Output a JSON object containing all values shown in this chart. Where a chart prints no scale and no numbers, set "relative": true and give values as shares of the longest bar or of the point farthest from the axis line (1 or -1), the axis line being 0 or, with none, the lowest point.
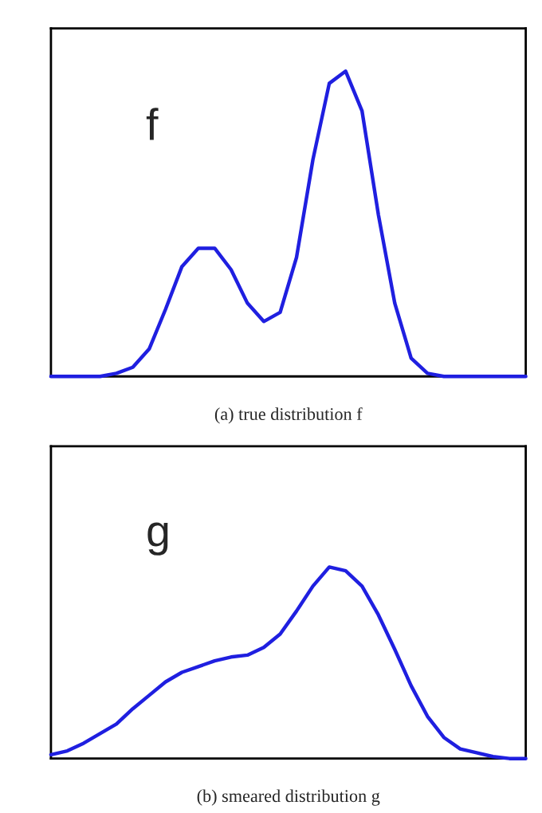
{
  "chart_data": [
    {
      "type": "line",
      "relative": true,
      "xlabel": "(a) true distribution f",
      "annotations": [
        "f"
      ],
      "categories": [
        null,
        null,
        null,
        null,
        null,
        null,
        null,
        null,
        null,
        null,
        null,
        null,
        null,
        null,
        null,
        null,
        null,
        null,
        null,
        null,
        null,
        null,
        null,
        null,
        null,
        null,
        null,
        null,
        null,
        null
      ],
      "series": [
        {
          "color": "#1f1fe0",
          "values": [
            0,
            0,
            0,
            0,
            0.01,
            0.03,
            0.09,
            0.22,
            0.36,
            0.42,
            0.42,
            0.35,
            0.24,
            0.18,
            0.21,
            0.39,
            0.71,
            0.96,
            1,
            0.87,
            0.53,
            0.24,
            0.06,
            0.01,
            0,
            0,
            0,
            0,
            0,
            0
          ]
        }
      ]
    },
    {
      "type": "line",
      "relative": true,
      "xlabel": "(b) smeared distribution g",
      "annotations": [
        "g"
      ],
      "categories": [
        null,
        null,
        null,
        null,
        null,
        null,
        null,
        null,
        null,
        null,
        null,
        null,
        null,
        null,
        null,
        null,
        null,
        null,
        null,
        null,
        null,
        null,
        null,
        null,
        null,
        null,
        null,
        null,
        null,
        null
      ],
      "series": [
        {
          "color": "#1f1fe0",
          "values": [
            0.02,
            0.04,
            0.08,
            0.13,
            0.18,
            0.26,
            0.33,
            0.4,
            0.45,
            0.48,
            0.51,
            0.53,
            0.54,
            0.58,
            0.65,
            0.77,
            0.9,
            1,
            0.98,
            0.9,
            0.75,
            0.57,
            0.38,
            0.22,
            0.11,
            0.05,
            0.03,
            0.01,
            0,
            0
          ]
        }
      ]
    }
  ]
}
